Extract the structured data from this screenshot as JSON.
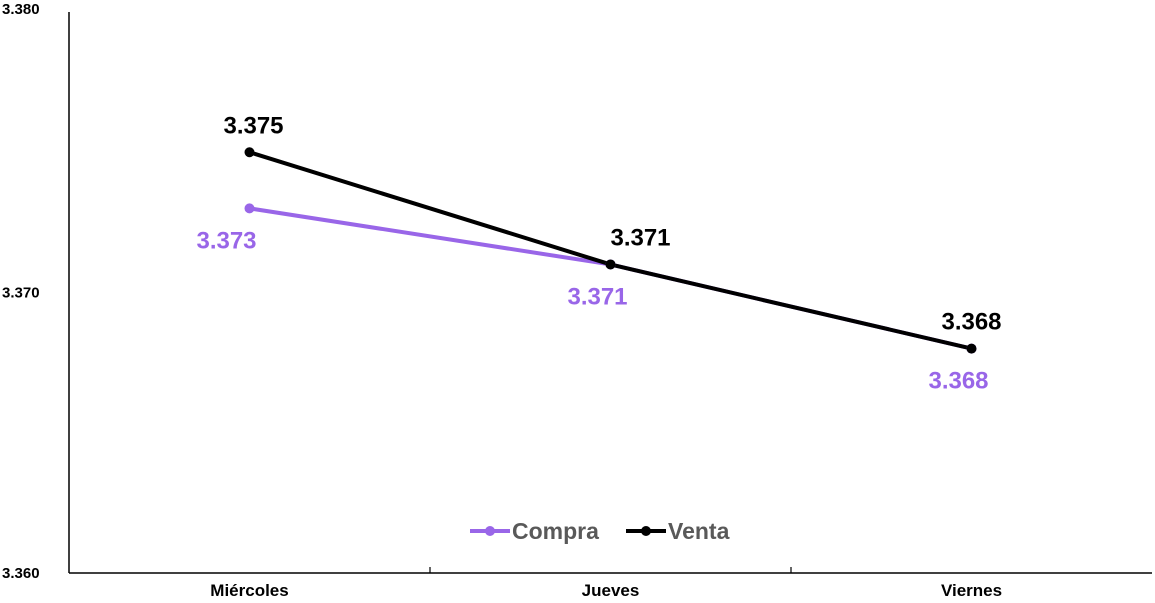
{
  "chart_data": {
    "type": "line",
    "title": "",
    "xlabel": "",
    "ylabel": "",
    "categories": [
      "Miércoles",
      "Jueves",
      "Viernes"
    ],
    "ylim": [
      3.36,
      3.38
    ],
    "yticks": [
      "3.380",
      "3.370",
      "3.360"
    ],
    "grid": false,
    "legend_position": "bottom",
    "series": [
      {
        "name": "Compra",
        "color": "#9966e8",
        "values": [
          3.373,
          3.371,
          3.368
        ],
        "labels": [
          "3.373",
          "3.371",
          "3.368"
        ],
        "label_position": "below"
      },
      {
        "name": "Venta",
        "color": "#000000",
        "values": [
          3.375,
          3.371,
          3.368
        ],
        "labels": [
          "3.375",
          "3.371",
          "3.368"
        ],
        "label_position": "above"
      }
    ]
  }
}
